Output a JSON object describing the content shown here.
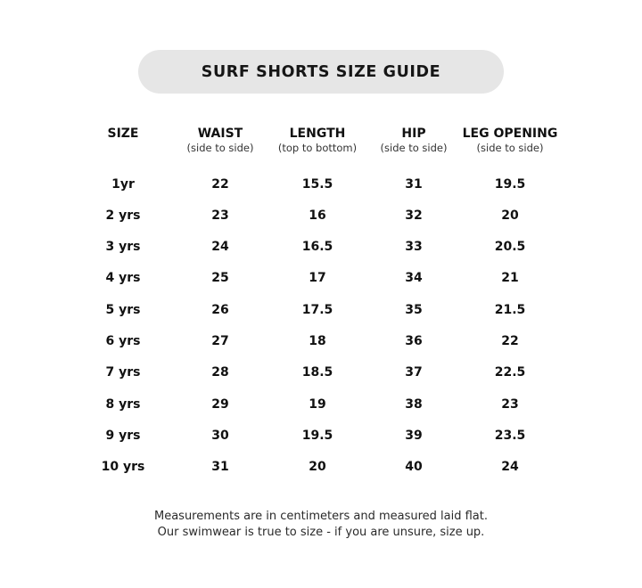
{
  "title": "SURF SHORTS SIZE GUIDE",
  "columns": [
    {
      "label": "SIZE",
      "sub": ""
    },
    {
      "label": "WAIST",
      "sub": "(side to side)"
    },
    {
      "label": "LENGTH",
      "sub": "(top to bottom)"
    },
    {
      "label": "HIP",
      "sub": "(side to side)"
    },
    {
      "label": "LEG OPENING",
      "sub": "(side to side)"
    }
  ],
  "rows": [
    [
      "1yr",
      "22",
      "15.5",
      "31",
      "19.5"
    ],
    [
      "2 yrs",
      "23",
      "16",
      "32",
      "20"
    ],
    [
      "3 yrs",
      "24",
      "16.5",
      "33",
      "20.5"
    ],
    [
      "4 yrs",
      "25",
      "17",
      "34",
      "21"
    ],
    [
      "5 yrs",
      "26",
      "17.5",
      "35",
      "21.5"
    ],
    [
      "6 yrs",
      "27",
      "18",
      "36",
      "22"
    ],
    [
      "7 yrs",
      "28",
      "18.5",
      "37",
      "22.5"
    ],
    [
      "8 yrs",
      "29",
      "19",
      "38",
      "23"
    ],
    [
      "9 yrs",
      "30",
      "19.5",
      "39",
      "23.5"
    ],
    [
      "10 yrs",
      "31",
      "20",
      "40",
      "24"
    ]
  ],
  "footer": {
    "line1": "Measurements are in centimeters and measured laid flat.",
    "line2": "Our swimwear is true to size - if you are unsure, size up."
  }
}
